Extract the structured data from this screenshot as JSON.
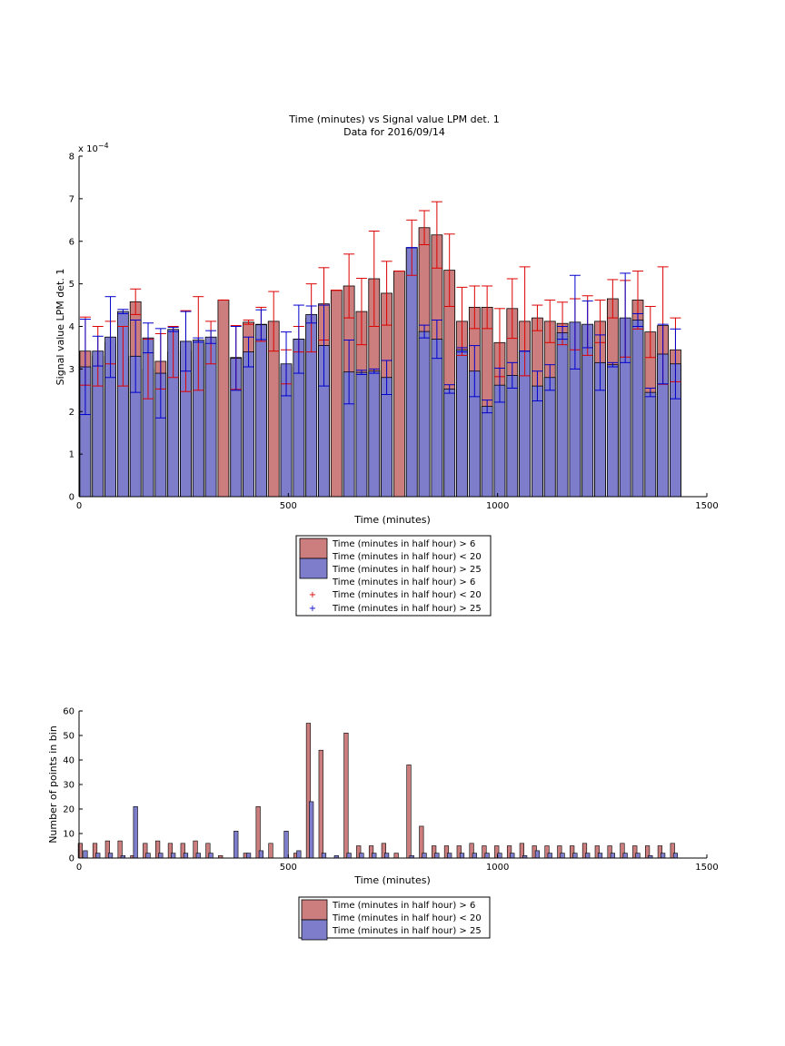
{
  "colors": {
    "bar_red": "#cc7d7d",
    "bar_blue": "#7d7dcc",
    "err_red": "#dd0000",
    "err_blue": "#0000cc",
    "axis": "#000000"
  },
  "chart_data": [
    {
      "type": "bar",
      "title": "Time (minutes) vs Signal value LPM det. 1",
      "subtitle": "Data for 2016/09/14",
      "xlabel": "Time (minutes)",
      "ylabel": "Signal value LPM det. 1",
      "y_exponent_label": "x 10",
      "y_exponent_power": "−4",
      "xlim": [
        0,
        1500
      ],
      "ylim": [
        0,
        8
      ],
      "xticks": [
        "0",
        "500",
        "1000",
        "1500"
      ],
      "yticks": [
        "0",
        "1",
        "2",
        "3",
        "4",
        "5",
        "6",
        "7",
        "8"
      ],
      "bar_width": 26,
      "legend": {
        "placement": "below",
        "entries": [
          "Time (minutes in half hour) > 6",
          "Time (minutes in half hour) < 20",
          "Time (minutes in half hour) > 25",
          "Time (minutes in half hour) > 6",
          "Time (minutes in half hour) < 20",
          "Time (minutes in half hour) > 25"
        ]
      },
      "series": [
        {
          "color": "red",
          "x": [
            15,
            45,
            75,
            105,
            135,
            165,
            195,
            225,
            255,
            285,
            315,
            345,
            375,
            405,
            435,
            465,
            495,
            525,
            555,
            585,
            615,
            645,
            675,
            705,
            735,
            765,
            795,
            825,
            855,
            885,
            915,
            945,
            975,
            1005,
            1035,
            1065,
            1095,
            1125,
            1155,
            1185,
            1215,
            1245,
            1275,
            1305,
            1335,
            1365,
            1395,
            1425
          ],
          "values": [
            3.42,
            3.3,
            3.62,
            3.3,
            4.58,
            3.0,
            3.18,
            3.4,
            3.42,
            3.6,
            3.62,
            4.62,
            3.27,
            4.1,
            4.05,
            4.12,
            3.05,
            3.7,
            4.2,
            4.53,
            4.85,
            4.95,
            4.35,
            5.12,
            4.78,
            5.3,
            5.85,
            6.32,
            6.15,
            5.32,
            4.12,
            4.45,
            4.45,
            3.62,
            4.42,
            4.12,
            4.2,
            4.12,
            4.07,
            4.05,
            4.02,
            4.12,
            4.65,
            4.18,
            4.62,
            3.87,
            4.02,
            3.45
          ],
          "err": [
            0.8,
            0.7,
            0.5,
            0.7,
            0.3,
            0.7,
            0.65,
            0.6,
            0.95,
            1.1,
            0.5,
            0.0,
            0.75,
            0.05,
            0.4,
            0.7,
            0.4,
            0.3,
            0.8,
            0.85,
            0.0,
            0.75,
            0.78,
            1.12,
            0.75,
            0.0,
            0.65,
            0.4,
            0.78,
            0.85,
            0.8,
            0.5,
            0.5,
            0.8,
            0.7,
            1.28,
            0.3,
            0.5,
            0.5,
            0.6,
            0.7,
            0.5,
            0.45,
            0.9,
            0.68,
            0.6,
            1.38,
            0.75
          ]
        },
        {
          "color": "blue",
          "x": [
            15,
            45,
            75,
            105,
            135,
            165,
            195,
            225,
            255,
            285,
            315,
            375,
            405,
            435,
            495,
            525,
            555,
            585,
            645,
            675,
            705,
            735,
            795,
            825,
            855,
            885,
            915,
            945,
            975,
            1005,
            1035,
            1065,
            1095,
            1125,
            1155,
            1185,
            1215,
            1245,
            1275,
            1305,
            1335,
            1365,
            1395,
            1425
          ],
          "values": [
            3.05,
            3.42,
            3.75,
            4.35,
            3.3,
            3.73,
            2.9,
            3.93,
            3.65,
            3.68,
            3.75,
            3.25,
            3.4,
            4.04,
            3.12,
            3.7,
            4.28,
            3.55,
            2.93,
            2.92,
            2.95,
            2.8,
            5.85,
            3.88,
            3.7,
            2.53,
            3.45,
            2.95,
            2.12,
            2.62,
            2.85,
            3.42,
            2.6,
            2.8,
            3.85,
            4.1,
            4.05,
            3.15,
            3.1,
            4.2,
            4.15,
            2.45,
            3.35,
            3.12
          ],
          "err": [
            1.12,
            0.35,
            0.95,
            0.05,
            0.85,
            0.35,
            1.05,
            0.05,
            0.7,
            0.05,
            0.15,
            0.75,
            0.35,
            0.35,
            0.75,
            0.8,
            0.2,
            0.95,
            0.75,
            0.05,
            0.05,
            0.4,
            0.0,
            0.15,
            0.45,
            0.1,
            0.05,
            0.6,
            0.15,
            0.4,
            0.3,
            0.0,
            0.35,
            0.3,
            0.15,
            1.1,
            0.55,
            0.65,
            0.05,
            1.05,
            0.15,
            0.1,
            0.7,
            0.82
          ]
        }
      ]
    },
    {
      "type": "bar",
      "xlabel": "Time (minutes)",
      "ylabel": "Number of points in bin",
      "xlim": [
        0,
        1500
      ],
      "ylim": [
        0,
        60
      ],
      "xticks": [
        "0",
        "500",
        "1000",
        "1500"
      ],
      "yticks": [
        "0",
        "10",
        "20",
        "30",
        "40",
        "50",
        "60"
      ],
      "bar_width": 10,
      "legend": {
        "placement": "below",
        "entries": [
          "Time (minutes in half hour) > 6",
          "Time (minutes in half hour) < 20",
          "Time (minutes in half hour) > 25"
        ]
      },
      "series": [
        {
          "color": "red",
          "x": [
            3,
            38,
            68,
            98,
            128,
            158,
            188,
            218,
            248,
            278,
            308,
            338,
            368,
            398,
            428,
            458,
            488,
            518,
            548,
            578,
            608,
            638,
            668,
            698,
            728,
            758,
            788,
            818,
            848,
            878,
            908,
            938,
            968,
            998,
            1028,
            1058,
            1088,
            1118,
            1148,
            1178,
            1208,
            1238,
            1268,
            1298,
            1328,
            1358,
            1388,
            1418
          ],
          "values": [
            6,
            6,
            7,
            7,
            1,
            6,
            7,
            6,
            6,
            7,
            6,
            1,
            0,
            2,
            21,
            6,
            0,
            2,
            55,
            44,
            0,
            51,
            5,
            5,
            6,
            2,
            38,
            13,
            5,
            5,
            5,
            6,
            5,
            5,
            5,
            6,
            5,
            5,
            5,
            5,
            6,
            5,
            5,
            6,
            5,
            5,
            5,
            6
          ]
        },
        {
          "color": "blue",
          "x": [
            15,
            45,
            75,
            105,
            135,
            165,
            195,
            225,
            255,
            285,
            315,
            345,
            375,
            405,
            435,
            465,
            495,
            525,
            555,
            585,
            615,
            645,
            675,
            705,
            735,
            765,
            795,
            825,
            855,
            885,
            915,
            945,
            975,
            1005,
            1035,
            1065,
            1095,
            1125,
            1155,
            1185,
            1215,
            1245,
            1275,
            1305,
            1335,
            1365,
            1395,
            1425
          ],
          "values": [
            3,
            2,
            2,
            1,
            21,
            2,
            2,
            2,
            2,
            2,
            2,
            0,
            11,
            2,
            3,
            0,
            11,
            3,
            23,
            2,
            1,
            2,
            2,
            2,
            2,
            0,
            1,
            2,
            2,
            2,
            2,
            2,
            2,
            2,
            2,
            1,
            3,
            2,
            2,
            2,
            2,
            2,
            2,
            2,
            2,
            1,
            2,
            2
          ]
        }
      ]
    }
  ]
}
